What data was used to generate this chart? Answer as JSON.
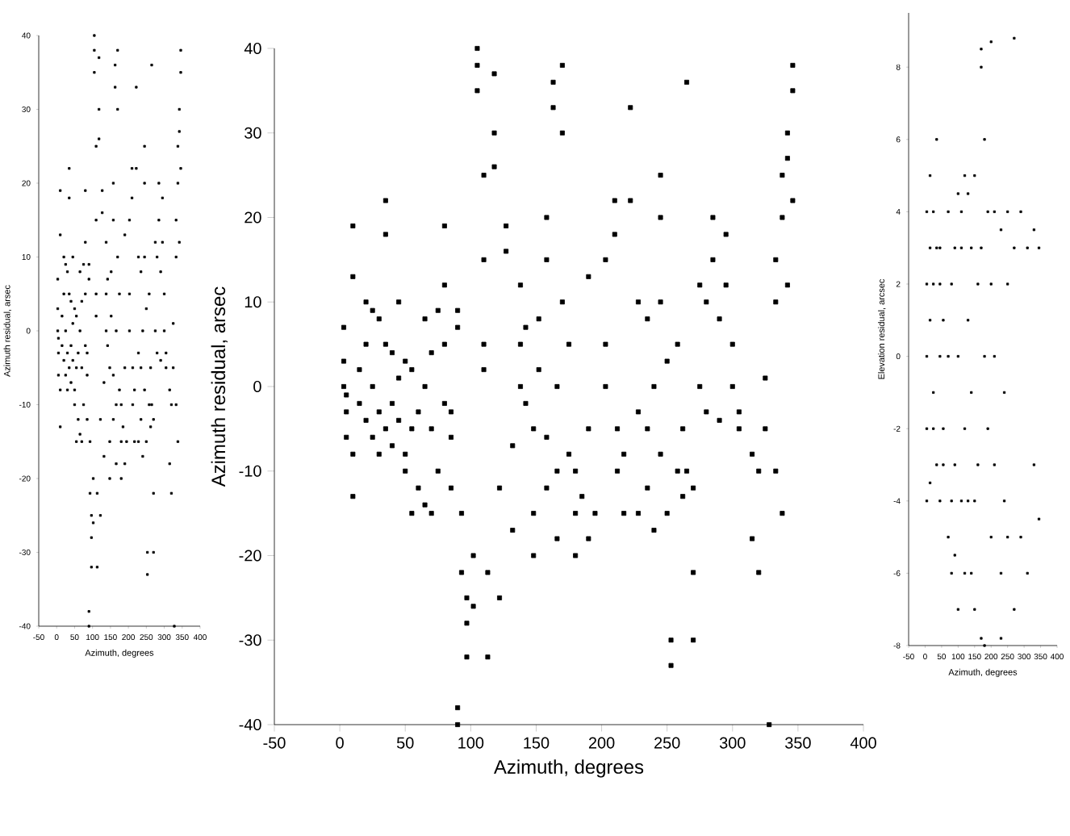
{
  "chart_data": [
    {
      "type": "scatter",
      "xlabel": "Azimuth, degrees",
      "ylabel": "Azimuth residual, arsec",
      "xlim": [
        -50,
        400
      ],
      "ylim": [
        -40,
        40
      ],
      "xticks": [
        -50,
        0,
        50,
        100,
        150,
        200,
        250,
        300,
        350,
        400
      ],
      "yticks": [
        -40,
        -30,
        -20,
        -10,
        0,
        10,
        20,
        30,
        40
      ],
      "marker": "square",
      "grid": false,
      "series": [
        {
          "color": "#000000",
          "x": [
            3,
            3,
            3,
            5,
            5,
            5,
            10,
            10,
            10,
            10,
            15,
            15,
            20,
            20,
            20,
            25,
            25,
            25,
            30,
            30,
            30,
            35,
            35,
            35,
            35,
            40,
            40,
            40,
            45,
            45,
            45,
            50,
            50,
            50,
            55,
            55,
            55,
            60,
            60,
            65,
            65,
            65,
            70,
            70,
            70,
            75,
            75,
            80,
            80,
            80,
            80,
            85,
            85,
            85,
            90,
            90,
            90,
            90,
            93,
            93,
            97,
            97,
            97,
            102,
            102,
            105,
            105,
            105,
            110,
            110,
            110,
            110,
            113,
            113,
            118,
            118,
            118,
            122,
            122,
            127,
            127,
            132,
            132,
            138,
            138,
            138,
            142,
            142,
            148,
            148,
            148,
            152,
            152,
            158,
            158,
            158,
            158,
            163,
            163,
            166,
            166,
            166,
            170,
            170,
            170,
            175,
            175,
            180,
            180,
            180,
            185,
            190,
            190,
            190,
            195,
            203,
            203,
            203,
            210,
            210,
            212,
            212,
            217,
            217,
            222,
            222,
            228,
            228,
            228,
            235,
            235,
            235,
            240,
            240,
            245,
            245,
            245,
            245,
            250,
            250,
            253,
            253,
            258,
            258,
            262,
            262,
            265,
            265,
            270,
            270,
            270,
            275,
            275,
            280,
            280,
            285,
            285,
            290,
            290,
            295,
            295,
            300,
            300,
            305,
            305,
            315,
            315,
            320,
            320,
            325,
            325,
            328,
            333,
            333,
            333,
            338,
            338,
            338,
            342,
            342,
            342,
            346,
            346,
            346
          ],
          "values": [
            7,
            3,
            0,
            -1,
            -3,
            -6,
            -8,
            -13,
            19,
            13,
            -2,
            2,
            -4,
            10,
            5,
            -6,
            0,
            9,
            -8,
            8,
            -3,
            5,
            -5,
            22,
            18,
            -2,
            4,
            -7,
            10,
            -4,
            1,
            -8,
            3,
            -10,
            -5,
            2,
            -15,
            -12,
            -3,
            -14,
            0,
            8,
            -15,
            -5,
            4,
            -10,
            9,
            19,
            12,
            5,
            -2,
            -6,
            -12,
            -3,
            9,
            7,
            -38,
            -40,
            -15,
            -22,
            -25,
            -32,
            -28,
            -20,
            -26,
            38,
            40,
            35,
            15,
            5,
            25,
            2,
            -22,
            -32,
            30,
            37,
            26,
            -25,
            -12,
            19,
            16,
            -7,
            -17,
            12,
            5,
            0,
            7,
            -2,
            -5,
            -15,
            -20,
            8,
            2,
            -12,
            -6,
            15,
            20,
            36,
            33,
            0,
            -10,
            -18,
            38,
            30,
            10,
            5,
            -8,
            -10,
            -20,
            -15,
            -13,
            13,
            -5,
            -18,
            -15,
            15,
            5,
            0,
            22,
            18,
            -5,
            -10,
            -15,
            -8,
            22,
            33,
            10,
            -3,
            -15,
            8,
            -5,
            -12,
            -17,
            0,
            25,
            20,
            10,
            -8,
            -15,
            3,
            -33,
            -30,
            5,
            -10,
            -5,
            -13,
            36,
            -10,
            -22,
            -30,
            -12,
            0,
            12,
            10,
            -3,
            15,
            20,
            8,
            -4,
            18,
            12,
            0,
            5,
            -5,
            -3,
            -8,
            -18,
            -22,
            -10,
            1,
            -5,
            -40,
            10,
            15,
            -10,
            25,
            20,
            -15,
            27,
            30,
            12,
            38,
            35,
            22
          ]
        }
      ]
    },
    {
      "type": "scatter",
      "xlabel": "Azimuth, degrees",
      "ylabel": "Azimuth residual, arsec",
      "xlim": [
        -50,
        400
      ],
      "ylim": [
        -40,
        40
      ],
      "xticks": [
        -50,
        0,
        50,
        100,
        150,
        200,
        250,
        300,
        350,
        400
      ],
      "yticks": [
        -40,
        -30,
        -20,
        -10,
        0,
        10,
        20,
        30,
        40
      ],
      "marker": "square",
      "grid": false,
      "series": [
        {
          "color": "#000000",
          "x": [
            3,
            3,
            3,
            5,
            5,
            5,
            10,
            10,
            10,
            10,
            15,
            15,
            20,
            20,
            20,
            25,
            25,
            25,
            30,
            30,
            30,
            35,
            35,
            35,
            35,
            40,
            40,
            40,
            45,
            45,
            45,
            50,
            50,
            50,
            55,
            55,
            55,
            60,
            60,
            65,
            65,
            65,
            70,
            70,
            70,
            75,
            75,
            80,
            80,
            80,
            80,
            85,
            85,
            85,
            90,
            90,
            90,
            90,
            93,
            93,
            97,
            97,
            97,
            102,
            102,
            105,
            105,
            105,
            110,
            110,
            110,
            110,
            113,
            113,
            118,
            118,
            118,
            122,
            122,
            127,
            127,
            132,
            132,
            138,
            138,
            138,
            142,
            142,
            148,
            148,
            148,
            152,
            152,
            158,
            158,
            158,
            158,
            163,
            163,
            166,
            166,
            166,
            170,
            170,
            170,
            175,
            175,
            180,
            180,
            180,
            185,
            190,
            190,
            190,
            195,
            203,
            203,
            203,
            210,
            210,
            212,
            212,
            217,
            217,
            222,
            222,
            228,
            228,
            228,
            235,
            235,
            235,
            240,
            240,
            245,
            245,
            245,
            245,
            250,
            250,
            253,
            253,
            258,
            258,
            262,
            262,
            265,
            265,
            270,
            270,
            270,
            275,
            275,
            280,
            280,
            285,
            285,
            290,
            290,
            295,
            295,
            300,
            300,
            305,
            305,
            315,
            315,
            320,
            320,
            325,
            325,
            328,
            333,
            333,
            333,
            338,
            338,
            338,
            342,
            342,
            342,
            346,
            346,
            346
          ],
          "values": [
            7,
            3,
            0,
            -1,
            -3,
            -6,
            -8,
            -13,
            19,
            13,
            -2,
            2,
            -4,
            10,
            5,
            -6,
            0,
            9,
            -8,
            8,
            -3,
            5,
            -5,
            22,
            18,
            -2,
            4,
            -7,
            10,
            -4,
            1,
            -8,
            3,
            -10,
            -5,
            2,
            -15,
            -12,
            -3,
            -14,
            0,
            8,
            -15,
            -5,
            4,
            -10,
            9,
            19,
            12,
            5,
            -2,
            -6,
            -12,
            -3,
            9,
            7,
            -38,
            -40,
            -15,
            -22,
            -25,
            -32,
            -28,
            -20,
            -26,
            38,
            40,
            35,
            15,
            5,
            25,
            2,
            -22,
            -32,
            30,
            37,
            26,
            -25,
            -12,
            19,
            16,
            -7,
            -17,
            12,
            5,
            0,
            7,
            -2,
            -5,
            -15,
            -20,
            8,
            2,
            -12,
            -6,
            15,
            20,
            36,
            33,
            0,
            -10,
            -18,
            38,
            30,
            10,
            5,
            -8,
            -10,
            -20,
            -15,
            -13,
            13,
            -5,
            -18,
            -15,
            15,
            5,
            0,
            22,
            18,
            -5,
            -10,
            -15,
            -8,
            22,
            33,
            10,
            -3,
            -15,
            8,
            -5,
            -12,
            -17,
            0,
            25,
            20,
            10,
            -8,
            -15,
            3,
            -33,
            -30,
            5,
            -10,
            -5,
            -13,
            36,
            -10,
            -22,
            -30,
            -12,
            0,
            12,
            10,
            -3,
            15,
            20,
            8,
            -4,
            18,
            12,
            0,
            5,
            -5,
            -3,
            -8,
            -18,
            -22,
            -10,
            1,
            -5,
            -40,
            10,
            15,
            -10,
            25,
            20,
            -15,
            27,
            30,
            12,
            38,
            35,
            22
          ]
        }
      ]
    },
    {
      "type": "scatter",
      "xlabel": "Azimuth, degrees",
      "ylabel": "Elevation residual, arcsec",
      "xlim": [
        -50,
        400
      ],
      "ylim": [
        -8,
        9.5
      ],
      "xticks": [
        -50,
        0,
        50,
        100,
        150,
        200,
        250,
        300,
        350,
        400
      ],
      "yticks": [
        -8,
        -6,
        -4,
        -2,
        0,
        2,
        4,
        6,
        8
      ],
      "marker": "square",
      "grid": false,
      "series": [
        {
          "color": "#000000",
          "x": [
            5,
            5,
            5,
            5,
            5,
            15,
            15,
            15,
            15,
            25,
            25,
            25,
            25,
            35,
            35,
            35,
            45,
            45,
            45,
            45,
            55,
            55,
            55,
            70,
            70,
            70,
            80,
            80,
            80,
            90,
            90,
            90,
            100,
            100,
            100,
            110,
            110,
            110,
            120,
            120,
            120,
            130,
            130,
            130,
            140,
            140,
            140,
            150,
            150,
            150,
            160,
            160,
            170,
            170,
            170,
            170,
            180,
            180,
            180,
            190,
            190,
            200,
            200,
            200,
            210,
            210,
            210,
            230,
            230,
            230,
            240,
            240,
            250,
            250,
            250,
            270,
            270,
            270,
            290,
            290,
            310,
            310,
            330,
            330,
            345,
            345
          ],
          "values": [
            4,
            -2,
            0,
            -4,
            2,
            3,
            -3.5,
            1,
            5,
            2,
            -2,
            4,
            -1,
            -3,
            3,
            6,
            0,
            -4,
            2,
            3,
            1,
            -2,
            -3,
            4,
            -5,
            0,
            2,
            -4,
            -6,
            3,
            -3,
            -5.5,
            4.5,
            0,
            -7,
            3,
            -4,
            4,
            5,
            -2,
            -6,
            -4,
            1,
            4.5,
            3,
            -6,
            -1,
            5,
            -4,
            -7,
            2,
            -3,
            8.5,
            -7.8,
            8,
            3,
            -8,
            6,
            0,
            -2,
            4,
            -5,
            2,
            8.7,
            4,
            -3,
            0,
            3.5,
            -6,
            -7.8,
            -1,
            -4,
            4,
            -5,
            2,
            8.8,
            -7,
            3,
            -5,
            4,
            3,
            -6,
            3.5,
            -3,
            -4.5,
            3
          ]
        }
      ]
    }
  ]
}
